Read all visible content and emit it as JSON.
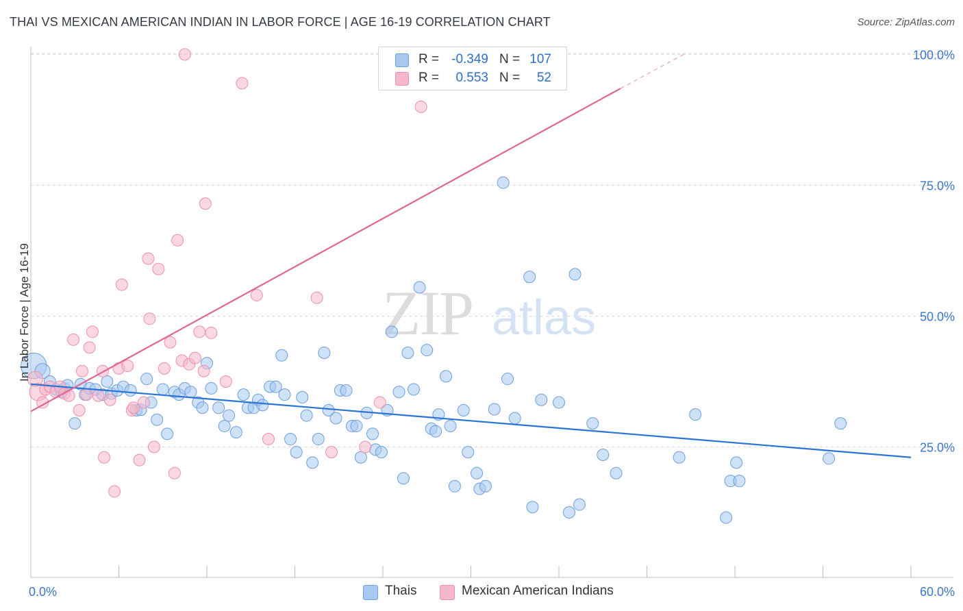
{
  "title": "THAI VS MEXICAN AMERICAN INDIAN IN LABOR FORCE | AGE 16-19 CORRELATION CHART",
  "source": "Source: ZipAtlas.com",
  "watermark": {
    "zip": "ZIP",
    "atlas": "atlas"
  },
  "legend": {
    "rows": [
      {
        "r_label": "R =",
        "r_value": "-0.349",
        "n_label": "N =",
        "n_value": "107",
        "color": "#a8c8f0"
      },
      {
        "r_label": "R =",
        "r_value": "0.553",
        "n_label": "N =",
        "n_value": "52",
        "color": "#f5b8cb"
      }
    ]
  },
  "bottom_legend": [
    {
      "label": "Thais",
      "color": "#a8c8f0"
    },
    {
      "label": "Mexican American Indians",
      "color": "#f5b8cb"
    }
  ],
  "chart_data": {
    "type": "scatter",
    "title": "THAI VS MEXICAN AMERICAN INDIAN IN LABOR FORCE | AGE 16-19 CORRELATION CHART",
    "xlabel": "",
    "ylabel": "In Labor Force | Age 16-19",
    "xlim": [
      0,
      60
    ],
    "ylim": [
      0,
      105
    ],
    "x_tick_labels": [
      "0.0%",
      "60.0%"
    ],
    "y_ticks": [
      25,
      50,
      75,
      100
    ],
    "y_tick_labels": [
      "25.0%",
      "50.0%",
      "75.0%",
      "100.0%"
    ],
    "grid": "horizontal-dashed",
    "legend_position": "top-center",
    "series": [
      {
        "name": "Thais",
        "color": "#6c9fe0",
        "fill": "#a8c8f0",
        "trend": {
          "x": [
            0,
            60
          ],
          "y": [
            37.0,
            23.0
          ],
          "color": "#2b74d6"
        },
        "points": [
          {
            "x": 0.2,
            "y": 40.5,
            "s": 2.2
          },
          {
            "x": 0.8,
            "y": 39.5,
            "s": 1.3
          },
          {
            "x": 1.3,
            "y": 37.5,
            "s": 1
          },
          {
            "x": 1.7,
            "y": 36
          },
          {
            "x": 2.1,
            "y": 35.5
          },
          {
            "x": 2.3,
            "y": 36.2
          },
          {
            "x": 2.5,
            "y": 36.8
          },
          {
            "x": 3.0,
            "y": 29.5
          },
          {
            "x": 3.4,
            "y": 37
          },
          {
            "x": 3.7,
            "y": 35
          },
          {
            "x": 4.0,
            "y": 36.2
          },
          {
            "x": 4.4,
            "y": 36
          },
          {
            "x": 4.9,
            "y": 35
          },
          {
            "x": 5.2,
            "y": 37.5
          },
          {
            "x": 5.5,
            "y": 35.2
          },
          {
            "x": 5.9,
            "y": 35.8
          },
          {
            "x": 6.3,
            "y": 36.5
          },
          {
            "x": 6.8,
            "y": 35.8
          },
          {
            "x": 7.2,
            "y": 32
          },
          {
            "x": 7.5,
            "y": 32.1
          },
          {
            "x": 7.9,
            "y": 38
          },
          {
            "x": 8.2,
            "y": 33.5
          },
          {
            "x": 8.6,
            "y": 30.2
          },
          {
            "x": 9.0,
            "y": 36
          },
          {
            "x": 9.3,
            "y": 27.5
          },
          {
            "x": 9.8,
            "y": 35.5
          },
          {
            "x": 10.1,
            "y": 35
          },
          {
            "x": 10.5,
            "y": 36.2
          },
          {
            "x": 10.9,
            "y": 35.5
          },
          {
            "x": 11.4,
            "y": 33.5
          },
          {
            "x": 11.7,
            "y": 32.5
          },
          {
            "x": 12.0,
            "y": 41
          },
          {
            "x": 12.3,
            "y": 36.2
          },
          {
            "x": 12.8,
            "y": 32.5
          },
          {
            "x": 13.2,
            "y": 29
          },
          {
            "x": 13.5,
            "y": 31
          },
          {
            "x": 14.0,
            "y": 27.8
          },
          {
            "x": 14.5,
            "y": 35
          },
          {
            "x": 14.8,
            "y": 32.5
          },
          {
            "x": 15.2,
            "y": 32.5
          },
          {
            "x": 15.5,
            "y": 34
          },
          {
            "x": 15.8,
            "y": 33
          },
          {
            "x": 16.3,
            "y": 36.5
          },
          {
            "x": 16.7,
            "y": 36.5
          },
          {
            "x": 17.1,
            "y": 42.5
          },
          {
            "x": 17.3,
            "y": 35
          },
          {
            "x": 17.7,
            "y": 26.5
          },
          {
            "x": 18.1,
            "y": 24
          },
          {
            "x": 18.5,
            "y": 34.5
          },
          {
            "x": 18.8,
            "y": 31
          },
          {
            "x": 19.2,
            "y": 22
          },
          {
            "x": 19.6,
            "y": 26.5
          },
          {
            "x": 20.0,
            "y": 43
          },
          {
            "x": 20.3,
            "y": 32
          },
          {
            "x": 20.8,
            "y": 30.5
          },
          {
            "x": 21.1,
            "y": 35.8
          },
          {
            "x": 21.5,
            "y": 35.8
          },
          {
            "x": 21.9,
            "y": 29
          },
          {
            "x": 22.2,
            "y": 29
          },
          {
            "x": 22.5,
            "y": 23
          },
          {
            "x": 22.9,
            "y": 31.5
          },
          {
            "x": 23.3,
            "y": 27.5
          },
          {
            "x": 23.5,
            "y": 24.5
          },
          {
            "x": 23.9,
            "y": 24
          },
          {
            "x": 24.3,
            "y": 32
          },
          {
            "x": 24.6,
            "y": 47
          },
          {
            "x": 25.1,
            "y": 35.5
          },
          {
            "x": 25.4,
            "y": 19
          },
          {
            "x": 25.7,
            "y": 43
          },
          {
            "x": 26.1,
            "y": 36
          },
          {
            "x": 26.5,
            "y": 55.5
          },
          {
            "x": 27.0,
            "y": 43.5
          },
          {
            "x": 27.3,
            "y": 28.5
          },
          {
            "x": 27.6,
            "y": 28
          },
          {
            "x": 27.8,
            "y": 31.2
          },
          {
            "x": 28.3,
            "y": 38.5
          },
          {
            "x": 28.6,
            "y": 29
          },
          {
            "x": 28.9,
            "y": 17.5
          },
          {
            "x": 29.5,
            "y": 32
          },
          {
            "x": 29.8,
            "y": 24
          },
          {
            "x": 30.4,
            "y": 20
          },
          {
            "x": 30.6,
            "y": 17
          },
          {
            "x": 31.0,
            "y": 17.5
          },
          {
            "x": 31.6,
            "y": 32.2
          },
          {
            "x": 32.2,
            "y": 75.5
          },
          {
            "x": 32.5,
            "y": 38
          },
          {
            "x": 33.0,
            "y": 30.5
          },
          {
            "x": 34.0,
            "y": 57.5
          },
          {
            "x": 34.2,
            "y": 13.5
          },
          {
            "x": 34.8,
            "y": 34
          },
          {
            "x": 36.0,
            "y": 33.5
          },
          {
            "x": 36.7,
            "y": 12.5
          },
          {
            "x": 37.1,
            "y": 58
          },
          {
            "x": 37.4,
            "y": 14
          },
          {
            "x": 38.3,
            "y": 29.5
          },
          {
            "x": 39.0,
            "y": 23.5
          },
          {
            "x": 39.9,
            "y": 20
          },
          {
            "x": 44.2,
            "y": 23
          },
          {
            "x": 45.3,
            "y": 31.2
          },
          {
            "x": 47.4,
            "y": 11.5
          },
          {
            "x": 47.7,
            "y": 18.5
          },
          {
            "x": 48.1,
            "y": 22
          },
          {
            "x": 48.3,
            "y": 18.5
          },
          {
            "x": 54.4,
            "y": 22.8
          },
          {
            "x": 55.2,
            "y": 29.5
          }
        ]
      },
      {
        "name": "Mexican American Indians",
        "color": "#ee8fae",
        "fill": "#f5b8cb",
        "trend": {
          "x": [
            0,
            40.2
          ],
          "y": [
            31.8,
            93.5
          ],
          "dashed_to": {
            "x": 44.5,
            "y": 100
          },
          "color": "#e06690"
        },
        "points": [
          {
            "x": 0.3,
            "y": 38,
            "s": 1.3
          },
          {
            "x": 0.5,
            "y": 35.5,
            "s": 1.5
          },
          {
            "x": 0.8,
            "y": 33.5
          },
          {
            "x": 1.0,
            "y": 36
          },
          {
            "x": 1.3,
            "y": 36.5
          },
          {
            "x": 1.7,
            "y": 35.5
          },
          {
            "x": 2.0,
            "y": 36.5
          },
          {
            "x": 2.3,
            "y": 35.2
          },
          {
            "x": 2.6,
            "y": 34.8
          },
          {
            "x": 2.9,
            "y": 45.5
          },
          {
            "x": 3.3,
            "y": 32
          },
          {
            "x": 3.5,
            "y": 39.5
          },
          {
            "x": 3.8,
            "y": 35
          },
          {
            "x": 4.0,
            "y": 44
          },
          {
            "x": 4.2,
            "y": 47
          },
          {
            "x": 4.6,
            "y": 34.8
          },
          {
            "x": 4.9,
            "y": 39.5
          },
          {
            "x": 5.0,
            "y": 23
          },
          {
            "x": 5.4,
            "y": 34
          },
          {
            "x": 5.7,
            "y": 16.5
          },
          {
            "x": 6.0,
            "y": 40
          },
          {
            "x": 6.2,
            "y": 56
          },
          {
            "x": 6.6,
            "y": 40.5
          },
          {
            "x": 6.9,
            "y": 32
          },
          {
            "x": 7.0,
            "y": 32.5
          },
          {
            "x": 7.4,
            "y": 22.5
          },
          {
            "x": 7.7,
            "y": 33.5
          },
          {
            "x": 8.0,
            "y": 61
          },
          {
            "x": 8.1,
            "y": 49.5
          },
          {
            "x": 8.4,
            "y": 25
          },
          {
            "x": 8.7,
            "y": 59
          },
          {
            "x": 9.1,
            "y": 40
          },
          {
            "x": 9.5,
            "y": 45
          },
          {
            "x": 9.8,
            "y": 20
          },
          {
            "x": 10.0,
            "y": 64.5
          },
          {
            "x": 10.3,
            "y": 41.5
          },
          {
            "x": 10.5,
            "y": 100
          },
          {
            "x": 10.8,
            "y": 40.8
          },
          {
            "x": 11.2,
            "y": 42
          },
          {
            "x": 11.5,
            "y": 47
          },
          {
            "x": 11.8,
            "y": 39.5
          },
          {
            "x": 11.9,
            "y": 71.5
          },
          {
            "x": 12.3,
            "y": 46.8
          },
          {
            "x": 13.3,
            "y": 37.5
          },
          {
            "x": 14.4,
            "y": 94.5
          },
          {
            "x": 15.4,
            "y": 54
          },
          {
            "x": 16.2,
            "y": 26.5
          },
          {
            "x": 19.5,
            "y": 53.5
          },
          {
            "x": 20.5,
            "y": 24
          },
          {
            "x": 22.8,
            "y": 25
          },
          {
            "x": 23.8,
            "y": 33.5
          },
          {
            "x": 26.6,
            "y": 90
          }
        ]
      }
    ]
  }
}
